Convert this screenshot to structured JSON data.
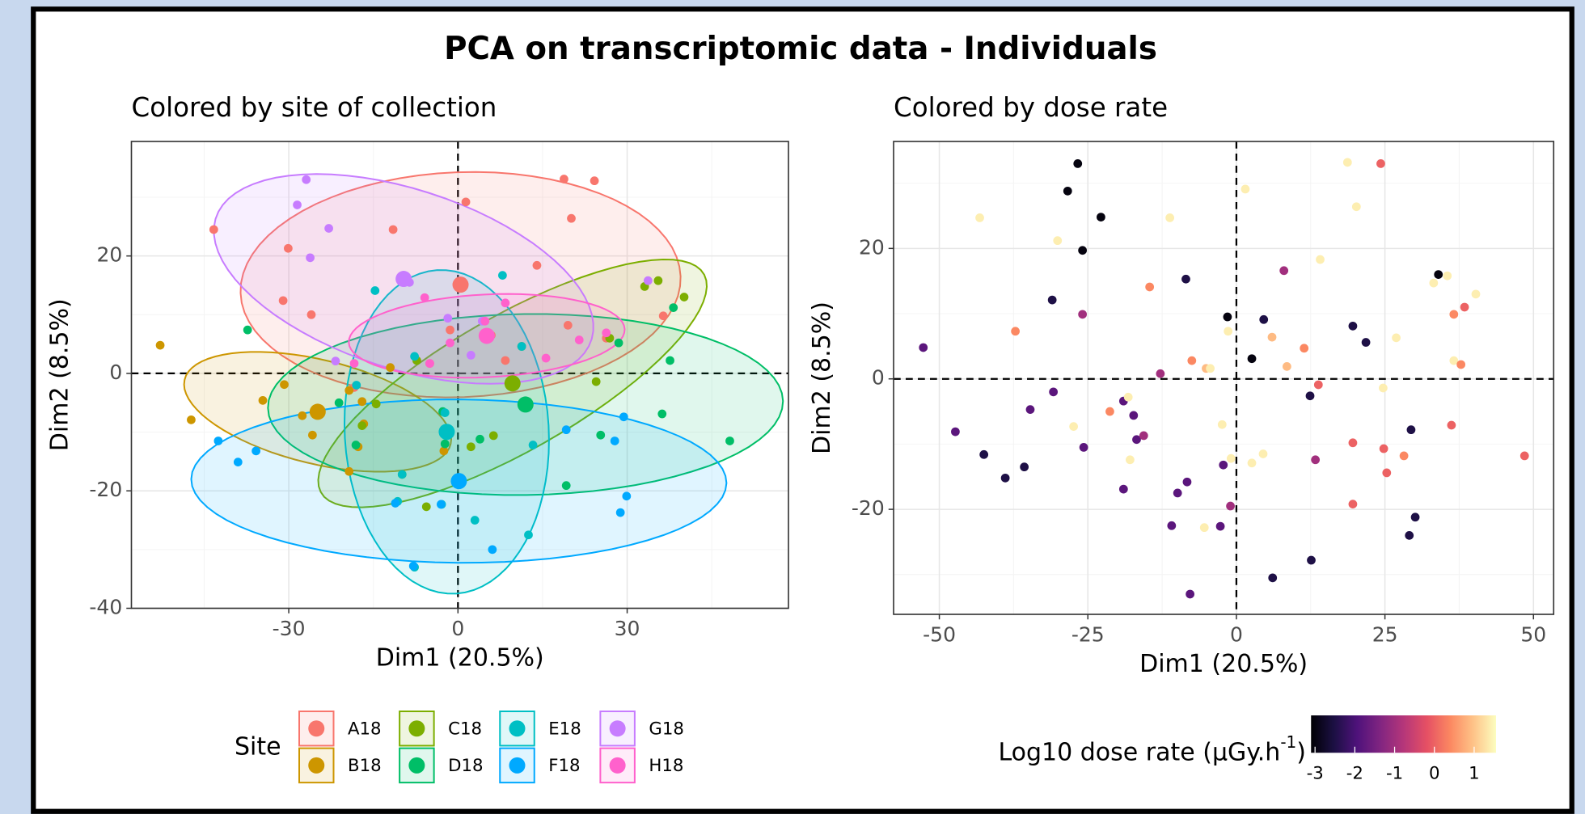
{
  "title": "PCA on transcriptomic data - Individuals",
  "chart_data": [
    {
      "type": "scatter",
      "title": "Colored by site of collection",
      "x_label": "Dim1 (20.5%)",
      "y_label": "Dim2 (8.5%)",
      "xlim": [
        -57.9,
        58.6
      ],
      "ylim": [
        -40,
        39.5
      ],
      "xticks": [
        -30,
        0,
        30
      ],
      "yticks": [
        -40,
        -20,
        0,
        20
      ],
      "grid": true,
      "reference_lines": {
        "x": 0,
        "y": 0
      },
      "ellipses": true,
      "legend": {
        "title": "Site",
        "position": "bottom"
      },
      "series": [
        {
          "name": "A18",
          "color": "#F8766D",
          "x": [
            -43.3,
            -30.1,
            -11.5,
            1.4,
            18.8,
            24.2,
            20.1,
            14.0,
            -31.0,
            -26.0,
            -1.4,
            5.9,
            8.4,
            19.5,
            26.3,
            36.4,
            -5.0,
            -18.4
          ],
          "y": [
            24.5,
            21.3,
            24.5,
            29.2,
            33.1,
            32.8,
            26.4,
            18.4,
            12.4,
            10.0,
            7.4,
            6.5,
            2.2,
            8.2,
            6.0,
            9.8,
            1.7,
            -2.4
          ]
        },
        {
          "name": "B18",
          "color": "#CD9600",
          "x": [
            -52.8,
            -47.3,
            -34.6,
            -30.8,
            -27.6,
            -25.8,
            -19.3,
            -17.0,
            -16.7,
            -19.3,
            -17.7,
            -12.0,
            -2.5
          ],
          "y": [
            4.8,
            -7.9,
            -4.6,
            -1.9,
            -7.2,
            -10.5,
            -2.9,
            -4.8,
            -8.6,
            -16.7,
            -12.5,
            1.0,
            -13.2
          ]
        },
        {
          "name": "C18",
          "color": "#7CAE00",
          "x": [
            33.1,
            35.5,
            40.1,
            26.9,
            11.3,
            24.5,
            6.3,
            2.3,
            -7.3,
            -14.5,
            -17.0,
            -5.6,
            -9.9
          ],
          "y": [
            14.8,
            15.8,
            13.0,
            6.0,
            4.6,
            -1.4,
            -10.6,
            -12.5,
            2.2,
            -5.2,
            -8.9,
            -22.7,
            -17.2
          ]
        },
        {
          "name": "D18",
          "color": "#00BE67",
          "x": [
            -37.3,
            38.2,
            37.6,
            36.2,
            48.2,
            19.2,
            25.3,
            3.9,
            -2.7,
            -21.1,
            -18.1,
            -2.3,
            28.5
          ],
          "y": [
            7.4,
            11.2,
            2.2,
            -6.9,
            -11.5,
            -19.1,
            -10.5,
            -11.2,
            -6.5,
            -5.0,
            -12.2,
            -12.0,
            5.2
          ]
        },
        {
          "name": "E18",
          "color": "#00BFC4",
          "x": [
            -14.7,
            7.9,
            11.3,
            -7.7,
            13.3,
            12.5,
            -9.9,
            -2.3,
            -10.7,
            -2.9,
            3.0,
            -7.7,
            -18.0
          ],
          "y": [
            14.1,
            16.7,
            4.6,
            2.9,
            -12.2,
            -27.5,
            -17.2,
            -6.7,
            -21.8,
            -22.3,
            -25.0,
            -33.0,
            -2.0
          ]
        },
        {
          "name": "F18",
          "color": "#00A9FF",
          "x": [
            -42.5,
            -39.0,
            -35.8,
            -11.1,
            -7.9,
            -3.0,
            6.1,
            19.2,
            27.8,
            29.4,
            29.9,
            28.8
          ],
          "y": [
            -11.5,
            -15.1,
            -13.2,
            -22.1,
            -32.8,
            -22.3,
            -30.0,
            -9.6,
            -11.5,
            -7.4,
            -20.9,
            -23.7
          ]
        },
        {
          "name": "G18",
          "color": "#C77CFF",
          "x": [
            -26.9,
            -28.5,
            -22.9,
            -26.2,
            -8.6,
            -1.8,
            2.3,
            4.3,
            33.7,
            -21.7
          ],
          "y": [
            33.0,
            28.7,
            24.7,
            19.7,
            15.5,
            9.4,
            3.1,
            8.9,
            15.8,
            2.1
          ]
        },
        {
          "name": "H18",
          "color": "#FF61CC",
          "x": [
            -5.0,
            4.8,
            21.5,
            -1.4,
            -18.4,
            26.3,
            8.4,
            -5.9,
            15.6
          ],
          "y": [
            1.7,
            8.9,
            5.7,
            5.2,
            1.7,
            6.9,
            12.0,
            12.9,
            2.6
          ]
        }
      ]
    },
    {
      "type": "scatter",
      "title": "Colored by dose rate",
      "x_label": "Dim1 (20.5%)",
      "y_label": "Dim2 (8.5%)",
      "xlim": [
        -57.7,
        53.4
      ],
      "ylim": [
        -36.1,
        36.4
      ],
      "xticks": [
        -50,
        -25,
        0,
        25,
        50
      ],
      "yticks": [
        -20,
        0,
        20
      ],
      "grid": true,
      "reference_lines": {
        "x": 0,
        "y": 0
      },
      "x": [
        -26.7,
        -28.4,
        -22.8,
        -25.9,
        -30.1,
        -43.2,
        -11.2,
        1.5,
        18.7,
        24.3,
        20.2,
        14.1,
        8.0,
        -8.5,
        -14.6,
        -31.0,
        -25.9,
        -37.2,
        -1.5,
        -1.4,
        4.6,
        6.0,
        2.6,
        8.5,
        11.4,
        13.8,
        19.6,
        21.8,
        26.9,
        33.2,
        34.0,
        35.5,
        36.6,
        38.4,
        40.3,
        36.6,
        37.8,
        24.7,
        12.4,
        36.2,
        29.4,
        19.6,
        24.8,
        28.2,
        25.3,
        48.5,
        13.3,
        19.6,
        30.1,
        29.1,
        12.6,
        6.1,
        -7.8,
        -1.0,
        -2.7,
        -5.4,
        -8.3,
        -9.9,
        -10.9,
        -2.2,
        -0.9,
        2.6,
        4.5,
        -2.4,
        -19.0,
        -17.9,
        -16.8,
        -15.6,
        -17.3,
        -19.0,
        -18.2,
        -21.3,
        -12.8,
        -7.5,
        -5.1,
        -4.4,
        -25.7,
        -27.4,
        -30.8,
        -34.7,
        -35.7,
        -38.9,
        -42.5,
        -47.3,
        -52.7
      ],
      "y": [
        33.0,
        28.8,
        24.8,
        19.7,
        21.2,
        24.7,
        24.7,
        29.1,
        33.2,
        33.0,
        26.4,
        18.3,
        16.6,
        15.3,
        14.1,
        12.1,
        9.9,
        7.3,
        9.5,
        7.3,
        9.1,
        6.4,
        3.1,
        1.9,
        4.7,
        -0.9,
        8.1,
        5.6,
        6.3,
        14.7,
        16.0,
        15.8,
        9.9,
        11.0,
        13.0,
        2.8,
        2.2,
        -1.4,
        -2.6,
        -7.1,
        -7.8,
        -9.8,
        -10.7,
        -11.8,
        -14.4,
        -11.8,
        -12.4,
        -19.2,
        -21.2,
        -24.0,
        -27.8,
        -30.5,
        -33.0,
        -19.5,
        -22.6,
        -22.8,
        -15.8,
        -17.5,
        -22.5,
        -13.2,
        -12.2,
        -12.9,
        -11.5,
        -7.0,
        -16.9,
        -12.4,
        -9.3,
        -8.7,
        -5.6,
        -3.4,
        -2.8,
        -5.0,
        0.8,
        2.8,
        1.6,
        1.6,
        -10.5,
        -7.3,
        -2.0,
        -4.7,
        -13.5,
        -15.2,
        -11.6,
        -8.1,
        4.8
      ],
      "color_values": [
        -3,
        -3,
        -3,
        -3,
        1.4,
        1.4,
        1.4,
        1.4,
        1.4,
        0.0,
        1.4,
        1.4,
        -1.0,
        -2.5,
        0.4,
        -2.5,
        -1.0,
        0.4,
        -3,
        1.4,
        -2.5,
        0.9,
        -3,
        0.9,
        0.4,
        0.0,
        -2.5,
        -2.5,
        1.4,
        1.4,
        -3,
        1.4,
        0.4,
        0.0,
        1.4,
        1.4,
        0.4,
        1.4,
        -2.5,
        0.0,
        -2.5,
        0.0,
        0.0,
        0.4,
        0.0,
        0.0,
        -1.0,
        0.0,
        -2.5,
        -2.5,
        -2.5,
        -2.5,
        -1.8,
        -1.0,
        -1.8,
        1.4,
        -1.8,
        -1.8,
        -1.8,
        -1.8,
        1.4,
        1.4,
        1.4,
        1.4,
        -1.8,
        1.4,
        -1.8,
        -1.0,
        -1.8,
        -1.8,
        1.4,
        0.4,
        -1.0,
        0.4,
        0.9,
        1.4,
        -1.8,
        1.4,
        -1.8,
        -1.8,
        -2.5,
        -2.5,
        -2.5,
        -1.8,
        -1.8
      ],
      "colorbar": {
        "title": "Log10 dose rate (μGy.h",
        "title_superscript": "-1",
        "title_suffix": ")",
        "position": "bottom",
        "lim": [
          -3.1,
          1.55
        ],
        "ticks": [
          -3,
          -2,
          -1,
          0,
          1
        ],
        "colors": [
          "#000004",
          "#1c1044",
          "#4f127b",
          "#812581",
          "#b5367a",
          "#e55064",
          "#fb8761",
          "#fec287",
          "#fcfdbf"
        ]
      }
    }
  ]
}
